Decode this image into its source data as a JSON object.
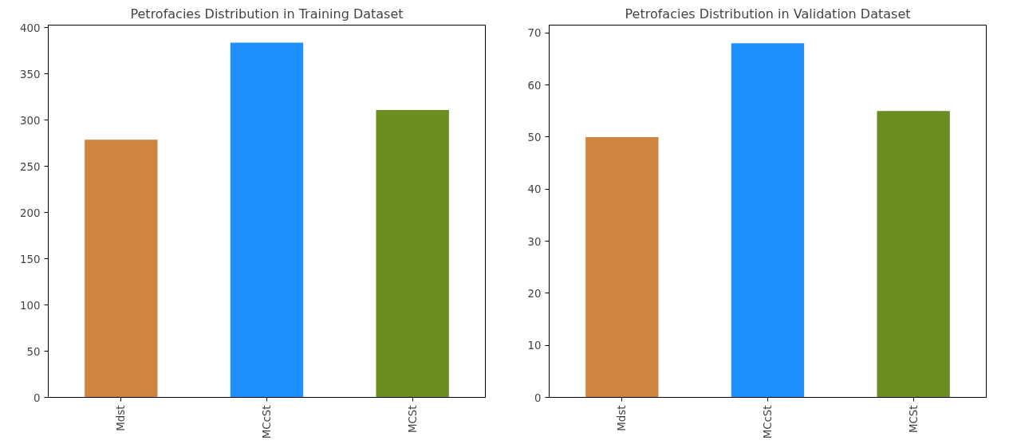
{
  "chart_data": [
    {
      "type": "bar",
      "title": "Petrofacies Distribution in Training Dataset",
      "categories": [
        "Mdst",
        "MCcSt",
        "MCSt"
      ],
      "values": [
        279,
        384,
        311
      ],
      "colors": [
        "#cd853f",
        "#1e90ff",
        "#6b8e23"
      ],
      "ylim": [
        0,
        403
      ],
      "yticks": [
        0,
        50,
        100,
        150,
        200,
        250,
        300,
        350,
        400
      ],
      "grid": false
    },
    {
      "type": "bar",
      "title": "Petrofacies Distribution in Validation Dataset",
      "categories": [
        "Mdst",
        "MCcSt",
        "MCSt"
      ],
      "values": [
        50,
        68,
        55
      ],
      "colors": [
        "#cd853f",
        "#1e90ff",
        "#6b8e23"
      ],
      "ylim": [
        0,
        71.5
      ],
      "yticks": [
        0,
        10,
        20,
        30,
        40,
        50,
        60,
        70
      ],
      "grid": false
    }
  ]
}
